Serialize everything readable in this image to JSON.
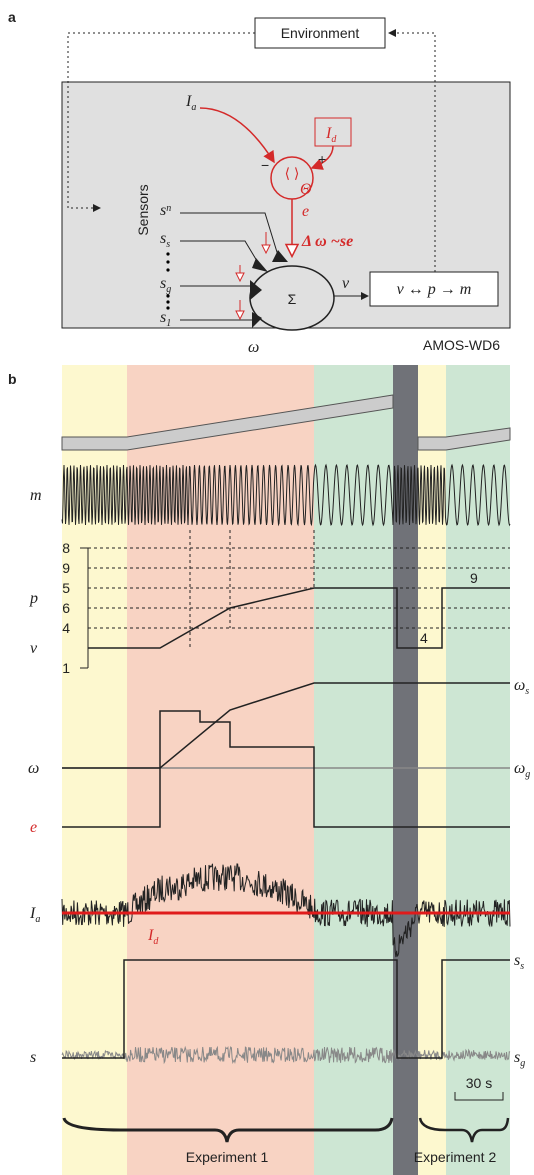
{
  "panel_a": {
    "label": "a",
    "environment": "Environment",
    "sensors": "Sensors",
    "input_a": {
      "symbol": "I",
      "sub": "a"
    },
    "input_d": {
      "symbol": "I",
      "sub": "d"
    },
    "brackets": "⟨ ⟩",
    "theta": "Θ",
    "minus": "−",
    "plus": "+",
    "error": "e",
    "learning_rule": "Δ ω ~se",
    "sensor_inputs": [
      {
        "symbol": "s",
        "sub": "n"
      },
      {
        "symbol": "s",
        "sub": "s"
      },
      {
        "symbol": "s",
        "sub": "g"
      },
      {
        "symbol": "s",
        "sub": "1"
      }
    ],
    "sigma": "Σ",
    "weight": "ω",
    "output": "v",
    "mapping": "v ↔ p → m",
    "robot": "AMOS-WD6"
  },
  "panel_b": {
    "label": "b",
    "row_labels": {
      "m": "m",
      "p": "p",
      "v": "v",
      "omega": "ω",
      "e": "e",
      "i_a": {
        "symbol": "I",
        "sub": "a"
      },
      "i_d": {
        "symbol": "I",
        "sub": "d"
      },
      "s": "s"
    },
    "right_labels": {
      "omega_s": {
        "symbol": "ω",
        "sub": "s"
      },
      "omega_g": {
        "symbol": "ω",
        "sub": "g"
      },
      "s_s": {
        "symbol": "s",
        "sub": "s"
      },
      "s_g": {
        "symbol": "s",
        "sub": "g"
      }
    },
    "p_axis_labels": [
      "8",
      "9",
      "5",
      "6",
      "4",
      "1"
    ],
    "inline_labels": [
      "4",
      "9"
    ],
    "scale_bar": "30 s",
    "experiments": [
      "Experiment 1",
      "Experiment 2"
    ]
  }
}
